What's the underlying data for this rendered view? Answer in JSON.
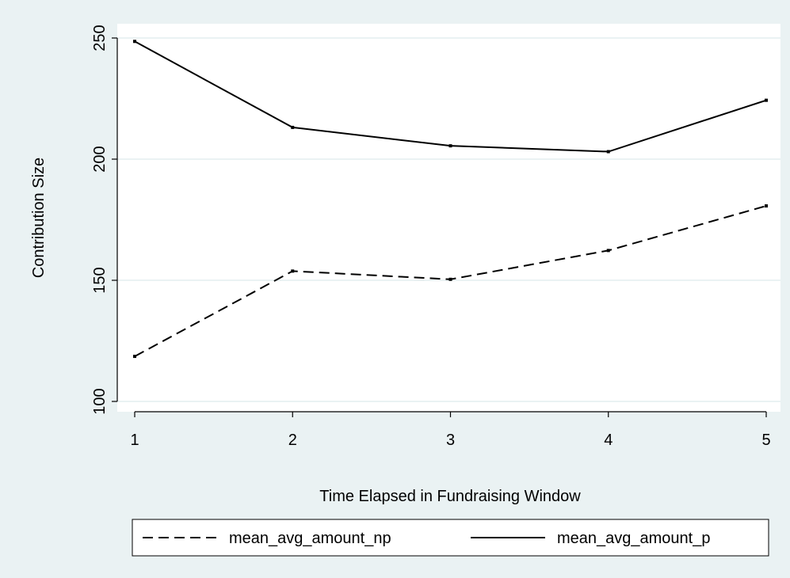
{
  "chart_data": {
    "type": "line",
    "title": "",
    "xlabel": "Time Elapsed in Fundraising Window",
    "ylabel": "Contribution Size",
    "x": [
      1,
      2,
      3,
      4,
      5
    ],
    "xlim": [
      1,
      5
    ],
    "ylim": [
      100,
      250
    ],
    "xticks": [
      1,
      2,
      3,
      4,
      5
    ],
    "yticks": [
      100,
      150,
      200,
      250
    ],
    "grid": true,
    "legend_position": "bottom",
    "series": [
      {
        "name": "mean_avg_amount_np",
        "style": "dashed",
        "values": [
          118.6,
          153.8,
          150.4,
          162.3,
          180.7
        ]
      },
      {
        "name": "mean_avg_amount_p",
        "style": "solid",
        "values": [
          248.6,
          213.1,
          205.5,
          203.1,
          224.3
        ]
      }
    ],
    "colors": {
      "plot_region": "#ffffff",
      "outer_background": "#eaf2f3",
      "gridline": "#eaf2f3",
      "line": "#000000"
    }
  }
}
